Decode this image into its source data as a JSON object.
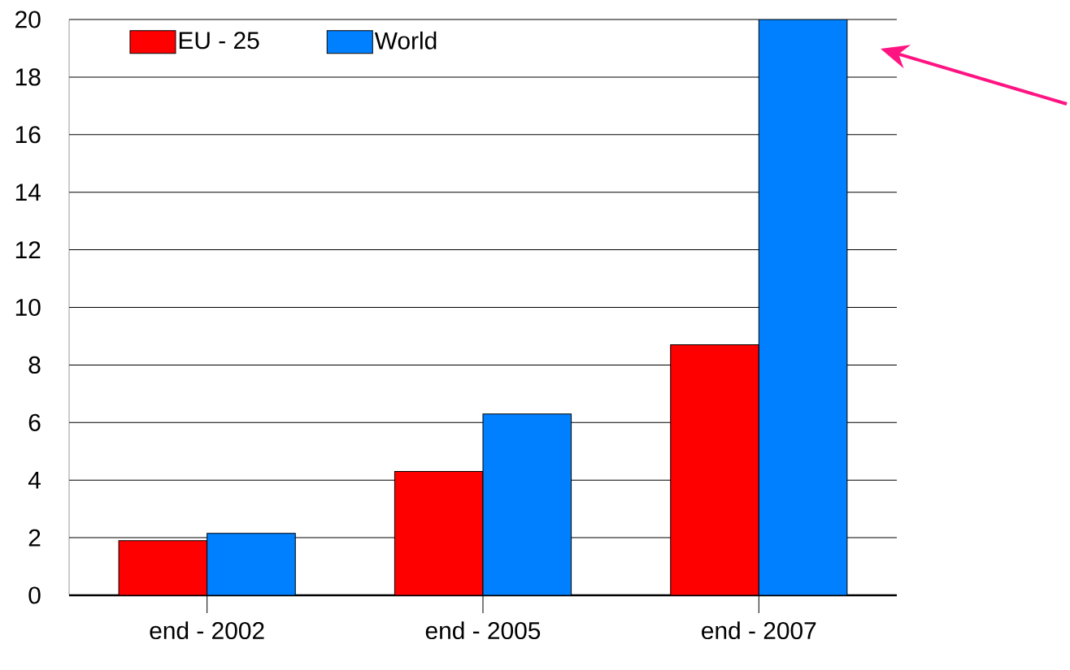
{
  "chart_data": {
    "type": "bar",
    "categories": [
      "end - 2002",
      "end - 2005",
      "end - 2007"
    ],
    "series": [
      {
        "name": "EU - 25",
        "color": "#ff0000",
        "values": [
          1.9,
          4.3,
          8.7
        ]
      },
      {
        "name": "World",
        "color": "#0080ff",
        "values": [
          2.15,
          6.3,
          20
        ]
      }
    ],
    "ylim": [
      0,
      20
    ],
    "yticks": [
      0,
      2,
      4,
      6,
      8,
      10,
      12,
      14,
      16,
      18,
      20
    ],
    "grid": "y",
    "legend": "top left"
  }
}
